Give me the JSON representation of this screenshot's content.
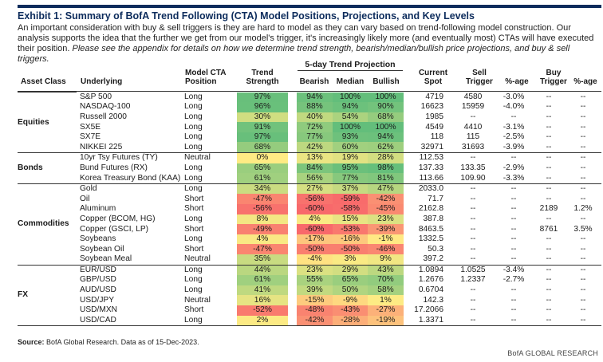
{
  "title": "Exhibit 1: Summary of BofA Trend Following (CTA) Model Positions, Projections, and Key Levels",
  "description": "An important consideration with buy & sell triggers is they are hard to model as they can vary based on trend-following model construction.  Our analysis supports the idea that the further we get from our model's trigger, it's increasingly likely more (and eventually most) CTAs will have executed their position.",
  "description_italic": "Please see the appendix for details on how we determine trend strength, bearish/median/bullish price projections, and buy & sell triggers.",
  "projection_header": "5-day Trend Projection",
  "headers": {
    "asset_class": "Asset Class",
    "underlying": "Underlying",
    "position": "Model CTA Position",
    "trend_strength": "Trend Strength",
    "bearish": "Bearish",
    "median": "Median",
    "bullish": "Bullish",
    "current_spot": "Current Spot",
    "sell_trigger": "Sell Trigger",
    "pct_age_sell": "%-age",
    "buy_trigger": "Buy Trigger",
    "pct_age_buy": "%-age"
  },
  "groups": [
    {
      "name": "Equities",
      "rows": [
        {
          "underlying": "S&P 500",
          "position": "Long",
          "trend": "97%",
          "bearish": "94%",
          "median": "100%",
          "bullish": "100%",
          "spot": "4719",
          "sell": "4580",
          "sell_pct": "-3.0%",
          "buy": "--",
          "buy_pct": "--"
        },
        {
          "underlying": "NASDAQ-100",
          "position": "Long",
          "trend": "96%",
          "bearish": "88%",
          "median": "94%",
          "bullish": "90%",
          "spot": "16623",
          "sell": "15959",
          "sell_pct": "-4.0%",
          "buy": "--",
          "buy_pct": "--"
        },
        {
          "underlying": "Russell 2000",
          "position": "Long",
          "trend": "30%",
          "bearish": "40%",
          "median": "54%",
          "bullish": "68%",
          "spot": "1985",
          "sell": "--",
          "sell_pct": "--",
          "buy": "--",
          "buy_pct": "--"
        },
        {
          "underlying": "SX5E",
          "position": "Long",
          "trend": "91%",
          "bearish": "72%",
          "median": "100%",
          "bullish": "100%",
          "spot": "4549",
          "sell": "4410",
          "sell_pct": "-3.1%",
          "buy": "--",
          "buy_pct": "--"
        },
        {
          "underlying": "SX7E",
          "position": "Long",
          "trend": "97%",
          "bearish": "77%",
          "median": "93%",
          "bullish": "94%",
          "spot": "118",
          "sell": "115",
          "sell_pct": "-2.5%",
          "buy": "--",
          "buy_pct": "--"
        },
        {
          "underlying": "NIKKEI 225",
          "position": "Long",
          "trend": "68%",
          "bearish": "42%",
          "median": "60%",
          "bullish": "62%",
          "spot": "32971",
          "sell": "31693",
          "sell_pct": "-3.9%",
          "buy": "--",
          "buy_pct": "--"
        }
      ]
    },
    {
      "name": "Bonds",
      "rows": [
        {
          "underlying": "10yr Tsy Futures (TY)",
          "position": "Neutral",
          "trend": "0%",
          "bearish": "13%",
          "median": "19%",
          "bullish": "28%",
          "spot": "112.53",
          "sell": "--",
          "sell_pct": "--",
          "buy": "--",
          "buy_pct": "--"
        },
        {
          "underlying": "Bund Futures (RX)",
          "position": "Long",
          "trend": "65%",
          "bearish": "84%",
          "median": "95%",
          "bullish": "98%",
          "spot": "137.33",
          "sell": "133.35",
          "sell_pct": "-2.9%",
          "buy": "--",
          "buy_pct": "--"
        },
        {
          "underlying": "Korea Treasury Bond (KAA)",
          "position": "Long",
          "trend": "61%",
          "bearish": "56%",
          "median": "77%",
          "bullish": "81%",
          "spot": "113.66",
          "sell": "109.90",
          "sell_pct": "-3.3%",
          "buy": "--",
          "buy_pct": "--"
        }
      ]
    },
    {
      "name": "Commodities",
      "rows": [
        {
          "underlying": "Gold",
          "position": "Long",
          "trend": "34%",
          "bearish": "27%",
          "median": "37%",
          "bullish": "47%",
          "spot": "2033.0",
          "sell": "--",
          "sell_pct": "--",
          "buy": "--",
          "buy_pct": "--"
        },
        {
          "underlying": "Oil",
          "position": "Short",
          "trend": "-47%",
          "bearish": "-56%",
          "median": "-59%",
          "bullish": "-42%",
          "spot": "71.7",
          "sell": "--",
          "sell_pct": "--",
          "buy": "--",
          "buy_pct": "--"
        },
        {
          "underlying": "Aluminum",
          "position": "Short",
          "trend": "-56%",
          "bearish": "-60%",
          "median": "-58%",
          "bullish": "-45%",
          "spot": "2162.8",
          "sell": "--",
          "sell_pct": "--",
          "buy": "2189",
          "buy_pct": "1.2%"
        },
        {
          "underlying": "Copper (BCOM, HG)",
          "position": "Long",
          "trend": "8%",
          "bearish": "4%",
          "median": "15%",
          "bullish": "23%",
          "spot": "387.8",
          "sell": "--",
          "sell_pct": "--",
          "buy": "--",
          "buy_pct": "--"
        },
        {
          "underlying": "Copper (GSCI, LP)",
          "position": "Short",
          "trend": "-49%",
          "bearish": "-60%",
          "median": "-53%",
          "bullish": "-39%",
          "spot": "8463.5",
          "sell": "--",
          "sell_pct": "--",
          "buy": "8761",
          "buy_pct": "3.5%"
        },
        {
          "underlying": "Soybeans",
          "position": "Long",
          "trend": "4%",
          "bearish": "-17%",
          "median": "-16%",
          "bullish": "-1%",
          "spot": "1332.5",
          "sell": "--",
          "sell_pct": "--",
          "buy": "--",
          "buy_pct": "--"
        },
        {
          "underlying": "Soybean Oil",
          "position": "Short",
          "trend": "-47%",
          "bearish": "-50%",
          "median": "-50%",
          "bullish": "-46%",
          "spot": "50.3",
          "sell": "--",
          "sell_pct": "--",
          "buy": "--",
          "buy_pct": "--"
        },
        {
          "underlying": "Soybean Meal",
          "position": "Neutral",
          "trend": "35%",
          "bearish": "-4%",
          "median": "3%",
          "bullish": "9%",
          "spot": "397.2",
          "sell": "--",
          "sell_pct": "--",
          "buy": "--",
          "buy_pct": "--"
        }
      ]
    },
    {
      "name": "FX",
      "rows": [
        {
          "underlying": "EUR/USD",
          "position": "Long",
          "trend": "44%",
          "bearish": "23%",
          "median": "29%",
          "bullish": "43%",
          "spot": "1.0894",
          "sell": "1.0525",
          "sell_pct": "-3.4%",
          "buy": "--",
          "buy_pct": "--"
        },
        {
          "underlying": "GBP/USD",
          "position": "Long",
          "trend": "61%",
          "bearish": "55%",
          "median": "65%",
          "bullish": "70%",
          "spot": "1.2676",
          "sell": "1.2337",
          "sell_pct": "-2.7%",
          "buy": "--",
          "buy_pct": "--"
        },
        {
          "underlying": "AUD/USD",
          "position": "Long",
          "trend": "41%",
          "bearish": "39%",
          "median": "50%",
          "bullish": "58%",
          "spot": "0.6704",
          "sell": "--",
          "sell_pct": "--",
          "buy": "--",
          "buy_pct": "--"
        },
        {
          "underlying": "USD/JPY",
          "position": "Neutral",
          "trend": "16%",
          "bearish": "-15%",
          "median": "-9%",
          "bullish": "1%",
          "spot": "142.3",
          "sell": "--",
          "sell_pct": "--",
          "buy": "--",
          "buy_pct": "--"
        },
        {
          "underlying": "USD/MXN",
          "position": "Short",
          "trend": "-52%",
          "bearish": "-48%",
          "median": "-43%",
          "bullish": "-27%",
          "spot": "17.2066",
          "sell": "--",
          "sell_pct": "--",
          "buy": "--",
          "buy_pct": "--"
        },
        {
          "underlying": "USD/CAD",
          "position": "Long",
          "trend": "2%",
          "bearish": "-42%",
          "median": "-28%",
          "bullish": "-19%",
          "spot": "1.3371",
          "sell": "--",
          "sell_pct": "--",
          "buy": "--",
          "buy_pct": "--"
        }
      ]
    }
  ],
  "heat_colors": {
    "strong_positive": "#63be7b",
    "neutral": "#ffeb84",
    "strong_negative": "#f8696b"
  },
  "source_label": "Source:",
  "source_text": "BofA Global Research.  Data as of 15-Dec-2023.",
  "brand": "BofA GLOBAL RESEARCH"
}
